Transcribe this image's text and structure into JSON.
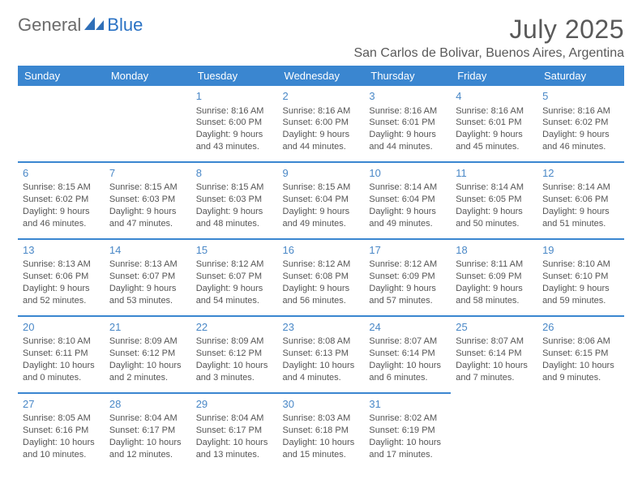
{
  "logo": {
    "text1": "General",
    "text2": "Blue"
  },
  "title": "July 2025",
  "location": "San Carlos de Bolivar, Buenos Aires, Argentina",
  "colors": {
    "header_bg": "#3a86d0",
    "header_text": "#ffffff",
    "daynum": "#4a88c7",
    "body_text": "#555555",
    "title_text": "#595959",
    "row_divider": "#3a86d0",
    "logo_gray": "#6b6b6b",
    "logo_blue": "#2a72c4"
  },
  "weekdays": [
    "Sunday",
    "Monday",
    "Tuesday",
    "Wednesday",
    "Thursday",
    "Friday",
    "Saturday"
  ],
  "weeks": [
    [
      null,
      null,
      {
        "n": "1",
        "l": [
          "Sunrise: 8:16 AM",
          "Sunset: 6:00 PM",
          "Daylight: 9 hours",
          "and 43 minutes."
        ]
      },
      {
        "n": "2",
        "l": [
          "Sunrise: 8:16 AM",
          "Sunset: 6:00 PM",
          "Daylight: 9 hours",
          "and 44 minutes."
        ]
      },
      {
        "n": "3",
        "l": [
          "Sunrise: 8:16 AM",
          "Sunset: 6:01 PM",
          "Daylight: 9 hours",
          "and 44 minutes."
        ]
      },
      {
        "n": "4",
        "l": [
          "Sunrise: 8:16 AM",
          "Sunset: 6:01 PM",
          "Daylight: 9 hours",
          "and 45 minutes."
        ]
      },
      {
        "n": "5",
        "l": [
          "Sunrise: 8:16 AM",
          "Sunset: 6:02 PM",
          "Daylight: 9 hours",
          "and 46 minutes."
        ]
      }
    ],
    [
      {
        "n": "6",
        "l": [
          "Sunrise: 8:15 AM",
          "Sunset: 6:02 PM",
          "Daylight: 9 hours",
          "and 46 minutes."
        ]
      },
      {
        "n": "7",
        "l": [
          "Sunrise: 8:15 AM",
          "Sunset: 6:03 PM",
          "Daylight: 9 hours",
          "and 47 minutes."
        ]
      },
      {
        "n": "8",
        "l": [
          "Sunrise: 8:15 AM",
          "Sunset: 6:03 PM",
          "Daylight: 9 hours",
          "and 48 minutes."
        ]
      },
      {
        "n": "9",
        "l": [
          "Sunrise: 8:15 AM",
          "Sunset: 6:04 PM",
          "Daylight: 9 hours",
          "and 49 minutes."
        ]
      },
      {
        "n": "10",
        "l": [
          "Sunrise: 8:14 AM",
          "Sunset: 6:04 PM",
          "Daylight: 9 hours",
          "and 49 minutes."
        ]
      },
      {
        "n": "11",
        "l": [
          "Sunrise: 8:14 AM",
          "Sunset: 6:05 PM",
          "Daylight: 9 hours",
          "and 50 minutes."
        ]
      },
      {
        "n": "12",
        "l": [
          "Sunrise: 8:14 AM",
          "Sunset: 6:06 PM",
          "Daylight: 9 hours",
          "and 51 minutes."
        ]
      }
    ],
    [
      {
        "n": "13",
        "l": [
          "Sunrise: 8:13 AM",
          "Sunset: 6:06 PM",
          "Daylight: 9 hours",
          "and 52 minutes."
        ]
      },
      {
        "n": "14",
        "l": [
          "Sunrise: 8:13 AM",
          "Sunset: 6:07 PM",
          "Daylight: 9 hours",
          "and 53 minutes."
        ]
      },
      {
        "n": "15",
        "l": [
          "Sunrise: 8:12 AM",
          "Sunset: 6:07 PM",
          "Daylight: 9 hours",
          "and 54 minutes."
        ]
      },
      {
        "n": "16",
        "l": [
          "Sunrise: 8:12 AM",
          "Sunset: 6:08 PM",
          "Daylight: 9 hours",
          "and 56 minutes."
        ]
      },
      {
        "n": "17",
        "l": [
          "Sunrise: 8:12 AM",
          "Sunset: 6:09 PM",
          "Daylight: 9 hours",
          "and 57 minutes."
        ]
      },
      {
        "n": "18",
        "l": [
          "Sunrise: 8:11 AM",
          "Sunset: 6:09 PM",
          "Daylight: 9 hours",
          "and 58 minutes."
        ]
      },
      {
        "n": "19",
        "l": [
          "Sunrise: 8:10 AM",
          "Sunset: 6:10 PM",
          "Daylight: 9 hours",
          "and 59 minutes."
        ]
      }
    ],
    [
      {
        "n": "20",
        "l": [
          "Sunrise: 8:10 AM",
          "Sunset: 6:11 PM",
          "Daylight: 10 hours",
          "and 0 minutes."
        ]
      },
      {
        "n": "21",
        "l": [
          "Sunrise: 8:09 AM",
          "Sunset: 6:12 PM",
          "Daylight: 10 hours",
          "and 2 minutes."
        ]
      },
      {
        "n": "22",
        "l": [
          "Sunrise: 8:09 AM",
          "Sunset: 6:12 PM",
          "Daylight: 10 hours",
          "and 3 minutes."
        ]
      },
      {
        "n": "23",
        "l": [
          "Sunrise: 8:08 AM",
          "Sunset: 6:13 PM",
          "Daylight: 10 hours",
          "and 4 minutes."
        ]
      },
      {
        "n": "24",
        "l": [
          "Sunrise: 8:07 AM",
          "Sunset: 6:14 PM",
          "Daylight: 10 hours",
          "and 6 minutes."
        ]
      },
      {
        "n": "25",
        "l": [
          "Sunrise: 8:07 AM",
          "Sunset: 6:14 PM",
          "Daylight: 10 hours",
          "and 7 minutes."
        ]
      },
      {
        "n": "26",
        "l": [
          "Sunrise: 8:06 AM",
          "Sunset: 6:15 PM",
          "Daylight: 10 hours",
          "and 9 minutes."
        ]
      }
    ],
    [
      {
        "n": "27",
        "l": [
          "Sunrise: 8:05 AM",
          "Sunset: 6:16 PM",
          "Daylight: 10 hours",
          "and 10 minutes."
        ]
      },
      {
        "n": "28",
        "l": [
          "Sunrise: 8:04 AM",
          "Sunset: 6:17 PM",
          "Daylight: 10 hours",
          "and 12 minutes."
        ]
      },
      {
        "n": "29",
        "l": [
          "Sunrise: 8:04 AM",
          "Sunset: 6:17 PM",
          "Daylight: 10 hours",
          "and 13 minutes."
        ]
      },
      {
        "n": "30",
        "l": [
          "Sunrise: 8:03 AM",
          "Sunset: 6:18 PM",
          "Daylight: 10 hours",
          "and 15 minutes."
        ]
      },
      {
        "n": "31",
        "l": [
          "Sunrise: 8:02 AM",
          "Sunset: 6:19 PM",
          "Daylight: 10 hours",
          "and 17 minutes."
        ]
      },
      null,
      null
    ]
  ]
}
